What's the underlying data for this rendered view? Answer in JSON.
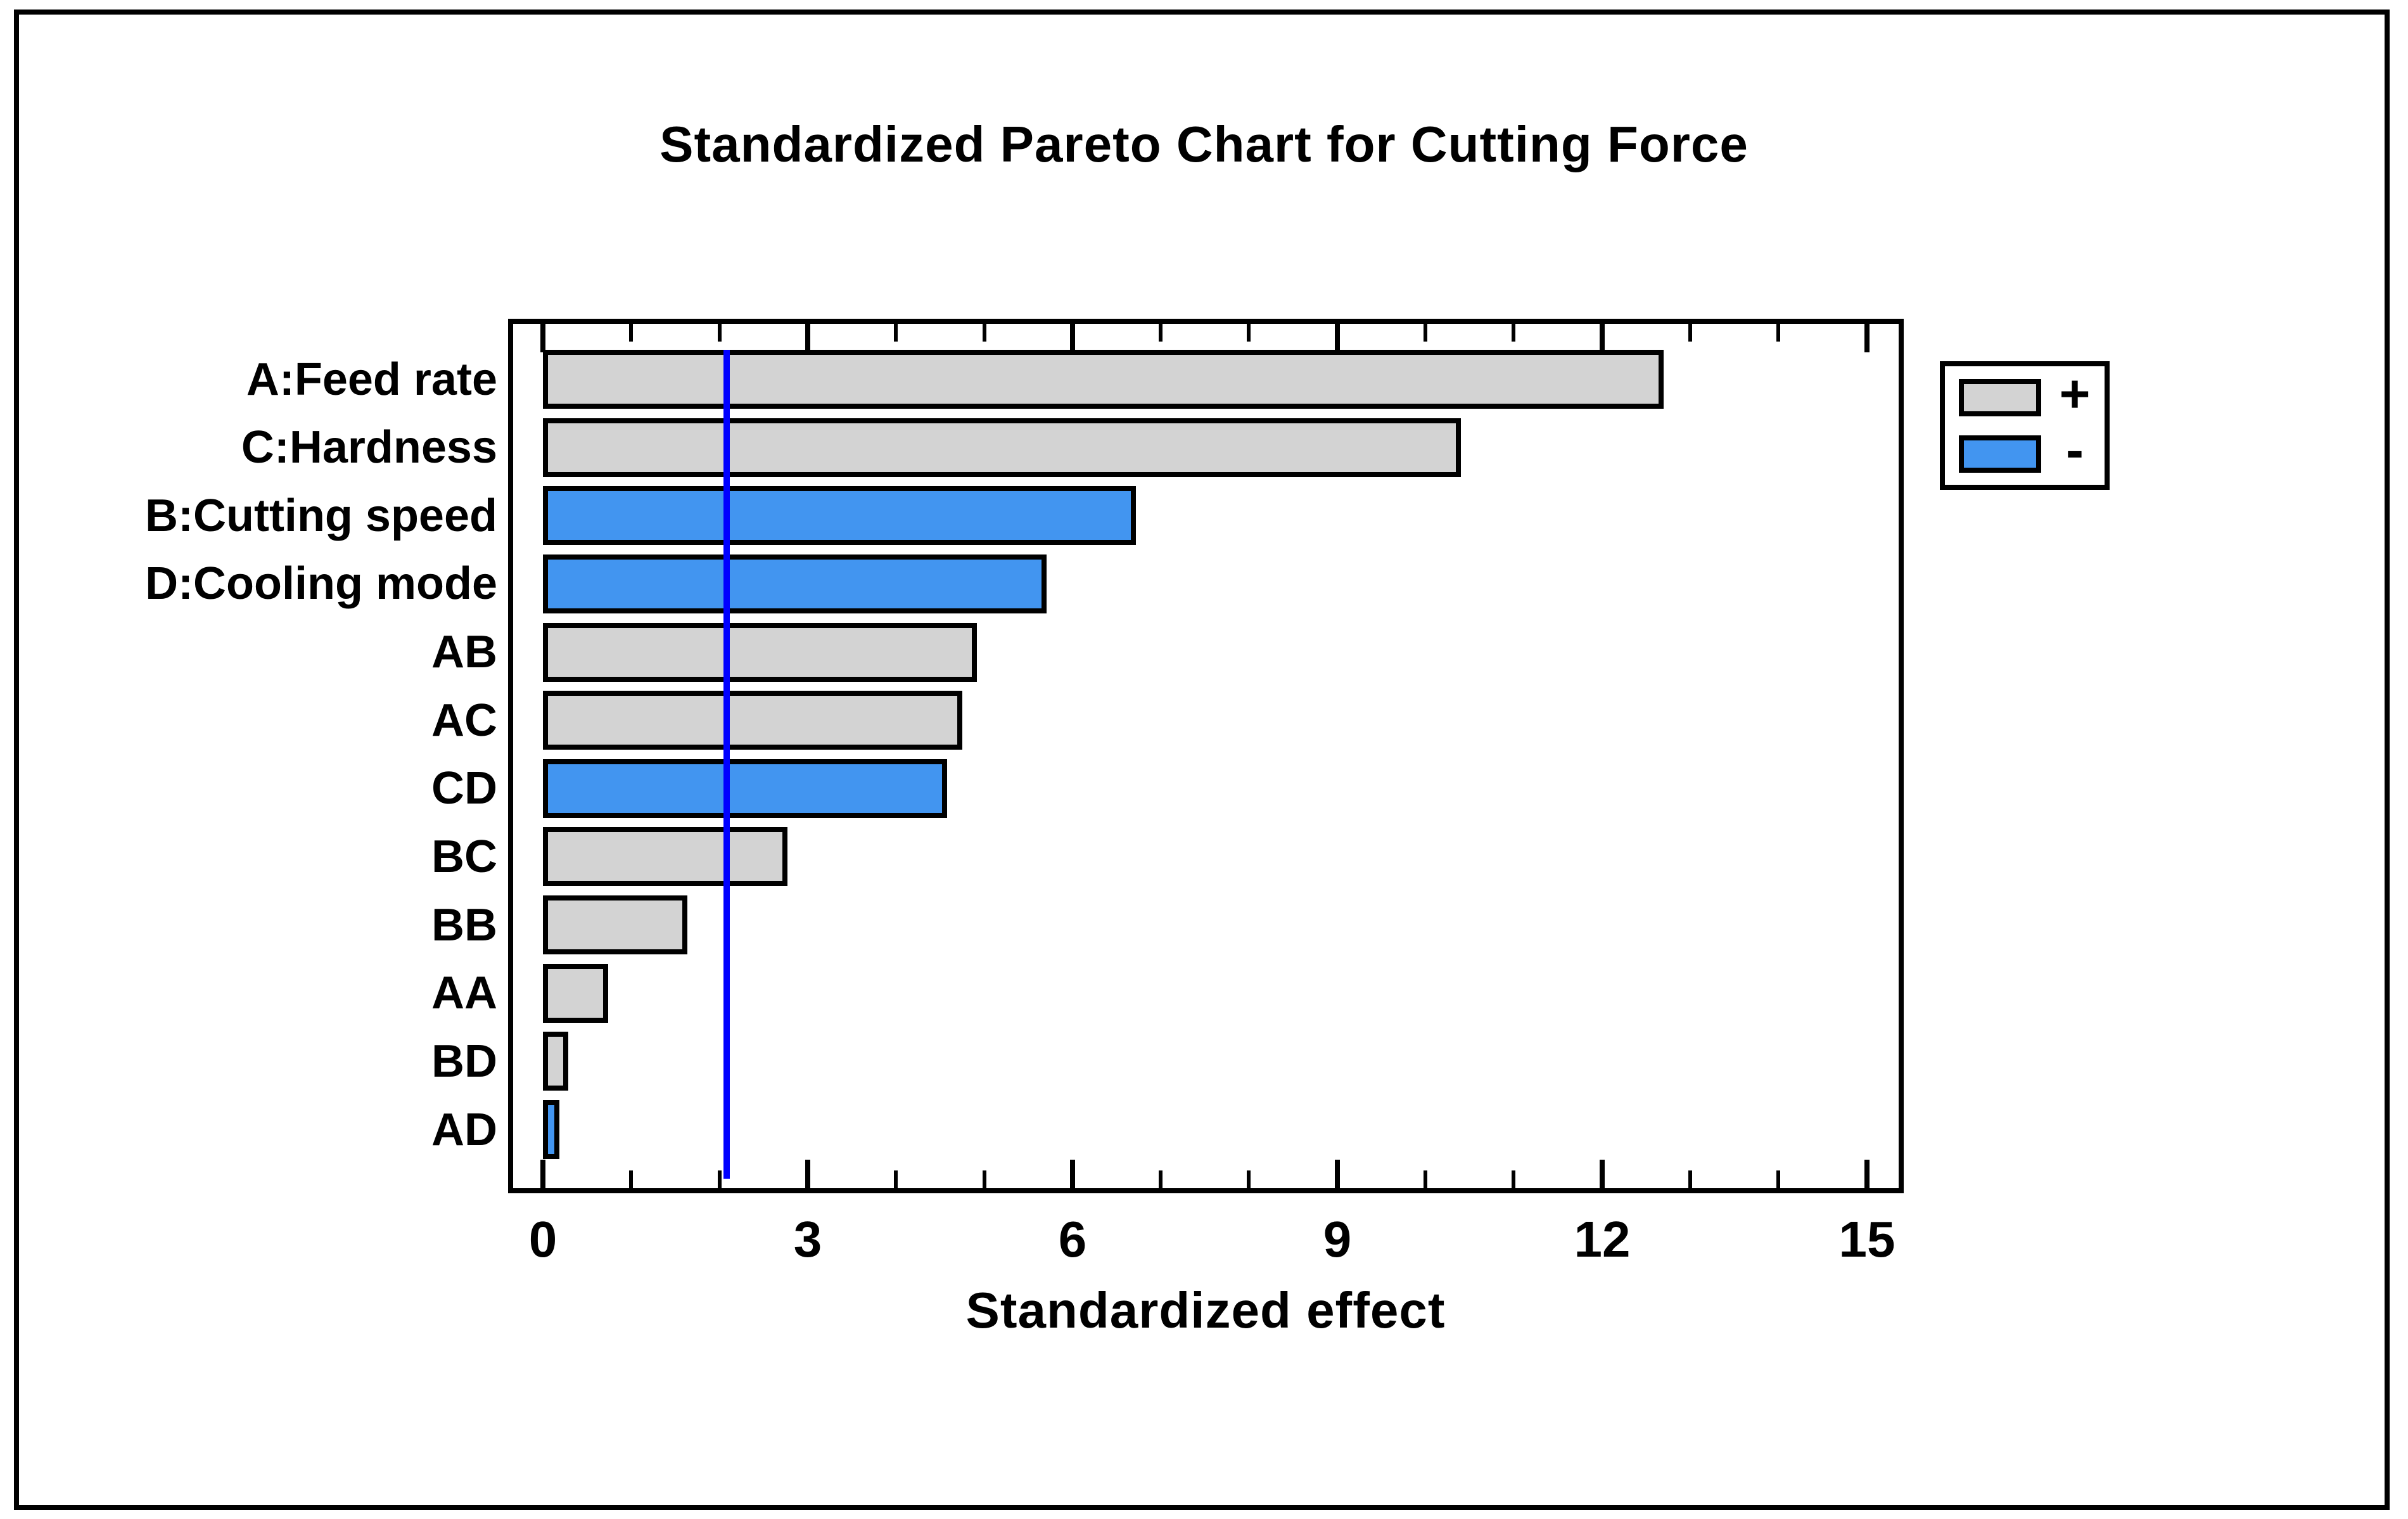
{
  "title": "Standardized Pareto Chart for Cutting Force",
  "x_axis": {
    "label": "Standardized effect",
    "min": 0,
    "max": 15,
    "major_ticks": [
      0,
      3,
      6,
      9,
      12,
      15
    ],
    "minor_tick_step": 1
  },
  "legend": {
    "positive_label": "+",
    "negative_label": "-"
  },
  "colors": {
    "positive_fill": "#d3d3d3",
    "negative_fill": "#4295f0",
    "reference_line": "#0000ff",
    "outline": "#000000",
    "background": "#ffffff"
  },
  "reference_line_value": 2.08,
  "chart_data": {
    "type": "bar",
    "orientation": "horizontal",
    "title": "Standardized Pareto Chart for Cutting Force",
    "xlabel": "Standardized effect",
    "ylabel": "",
    "xlim": [
      0,
      15
    ],
    "grid": false,
    "legend_position": "right",
    "categories": [
      "A:Feed rate",
      "C:Hardness",
      "B:Cutting speed",
      "D:Cooling mode",
      "AB",
      "AC",
      "CD",
      "BC",
      "BB",
      "AA",
      "BD",
      "AD"
    ],
    "series": [
      {
        "name": "Standardized effect",
        "values": [
          12.7,
          10.4,
          6.72,
          5.71,
          4.92,
          4.75,
          4.58,
          2.77,
          1.64,
          0.74,
          0.29,
          0.19
        ]
      }
    ],
    "signs": [
      "+",
      "+",
      "-",
      "-",
      "+",
      "+",
      "-",
      "+",
      "+",
      "+",
      "+",
      "-"
    ],
    "annotations": [
      {
        "type": "vline",
        "value": 2.08,
        "color": "#0000ff"
      }
    ]
  }
}
